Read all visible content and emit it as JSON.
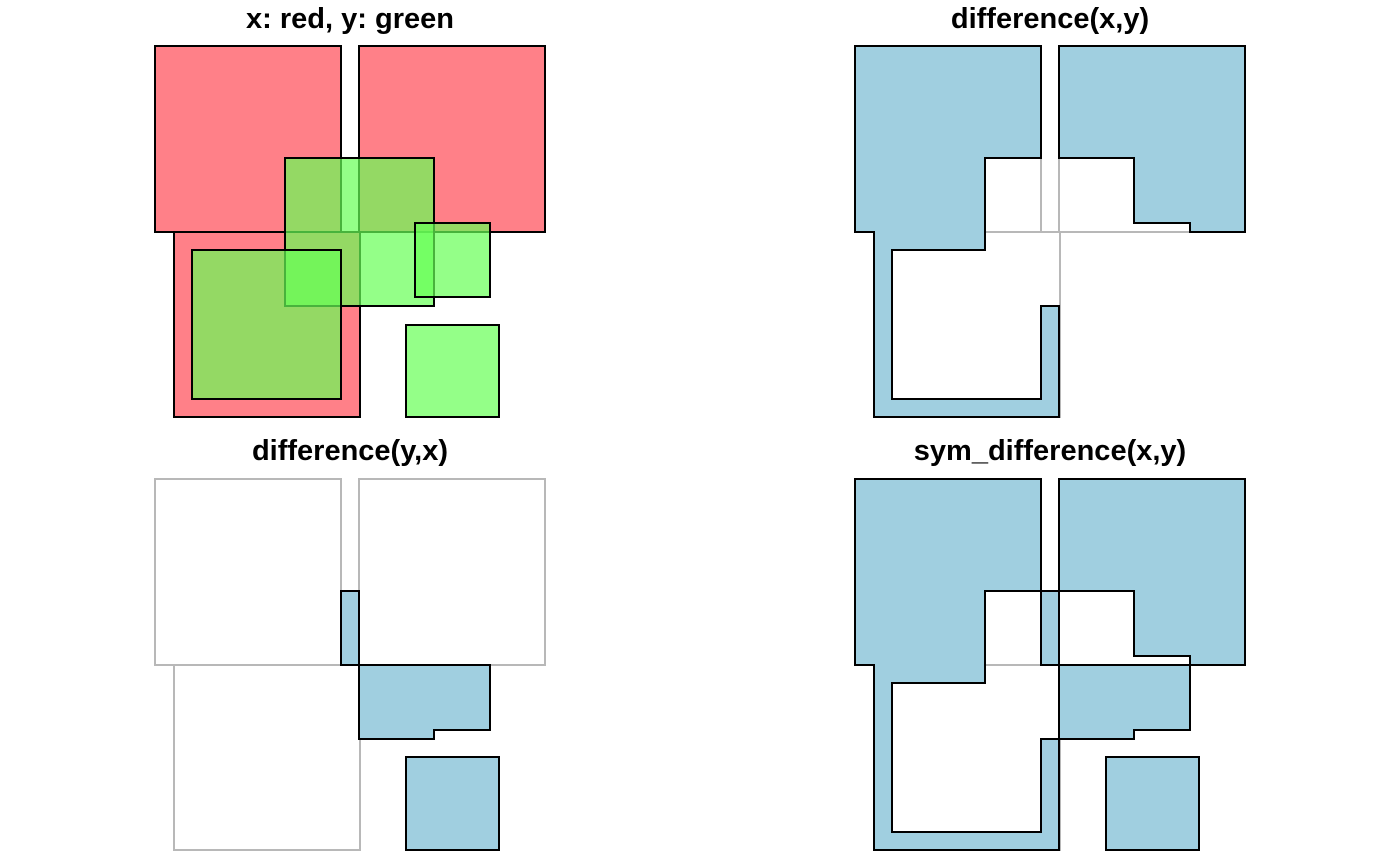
{
  "panels": [
    {
      "title": "x: red, y: green"
    },
    {
      "title": "difference(x,y)"
    },
    {
      "title": "difference(y,x)"
    },
    {
      "title": "sym_difference(x,y)"
    }
  ],
  "colors": {
    "x_fill": "#ff8088",
    "y_fill": "#66ff55",
    "y_fill_opacity": 0.7,
    "result_fill": "#a0cfe0",
    "outline": "#000000",
    "background_outline": "#b8b8b8"
  }
}
